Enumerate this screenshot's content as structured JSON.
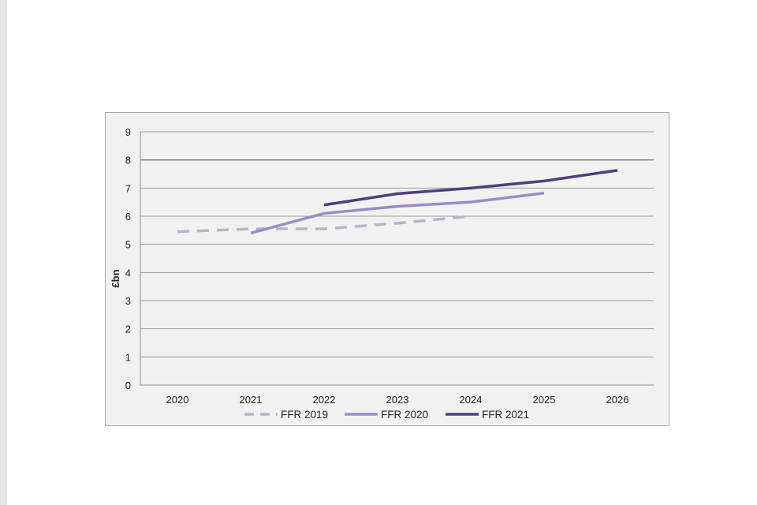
{
  "page": {
    "background_color": "#e6e6e6",
    "document_color": "#ffffff"
  },
  "chart_data": {
    "type": "line",
    "title": "",
    "xlabel": "",
    "ylabel": "£bn",
    "x": [
      "2020",
      "2021",
      "2022",
      "2023",
      "2024",
      "2025",
      "2026"
    ],
    "ylim": [
      0,
      9
    ],
    "yticks": [
      0,
      1,
      2,
      3,
      4,
      5,
      6,
      7,
      8,
      9
    ],
    "grid": true,
    "legend_position": "bottom",
    "series": [
      {
        "name": "FFR 2019",
        "color": "#b8b3c8",
        "dashed": true,
        "points": [
          {
            "x": "2020",
            "y": 5.45
          },
          {
            "x": "2021",
            "y": 5.55
          },
          {
            "x": "2022",
            "y": 5.55
          },
          {
            "x": "2023",
            "y": 5.75
          },
          {
            "x": "2024",
            "y": 6.0
          }
        ]
      },
      {
        "name": "FFR 2020",
        "color": "#9a8cc6",
        "dashed": false,
        "points": [
          {
            "x": "2021",
            "y": 5.4
          },
          {
            "x": "2022",
            "y": 6.1
          },
          {
            "x": "2023",
            "y": 6.35
          },
          {
            "x": "2024",
            "y": 6.5
          },
          {
            "x": "2025",
            "y": 6.82
          }
        ]
      },
      {
        "name": "FFR 2021",
        "color": "#4f3d7d",
        "dashed": false,
        "points": [
          {
            "x": "2022",
            "y": 6.4
          },
          {
            "x": "2023",
            "y": 6.8
          },
          {
            "x": "2024",
            "y": 7.0
          },
          {
            "x": "2025",
            "y": 7.25
          },
          {
            "x": "2026",
            "y": 7.63
          }
        ]
      }
    ]
  }
}
